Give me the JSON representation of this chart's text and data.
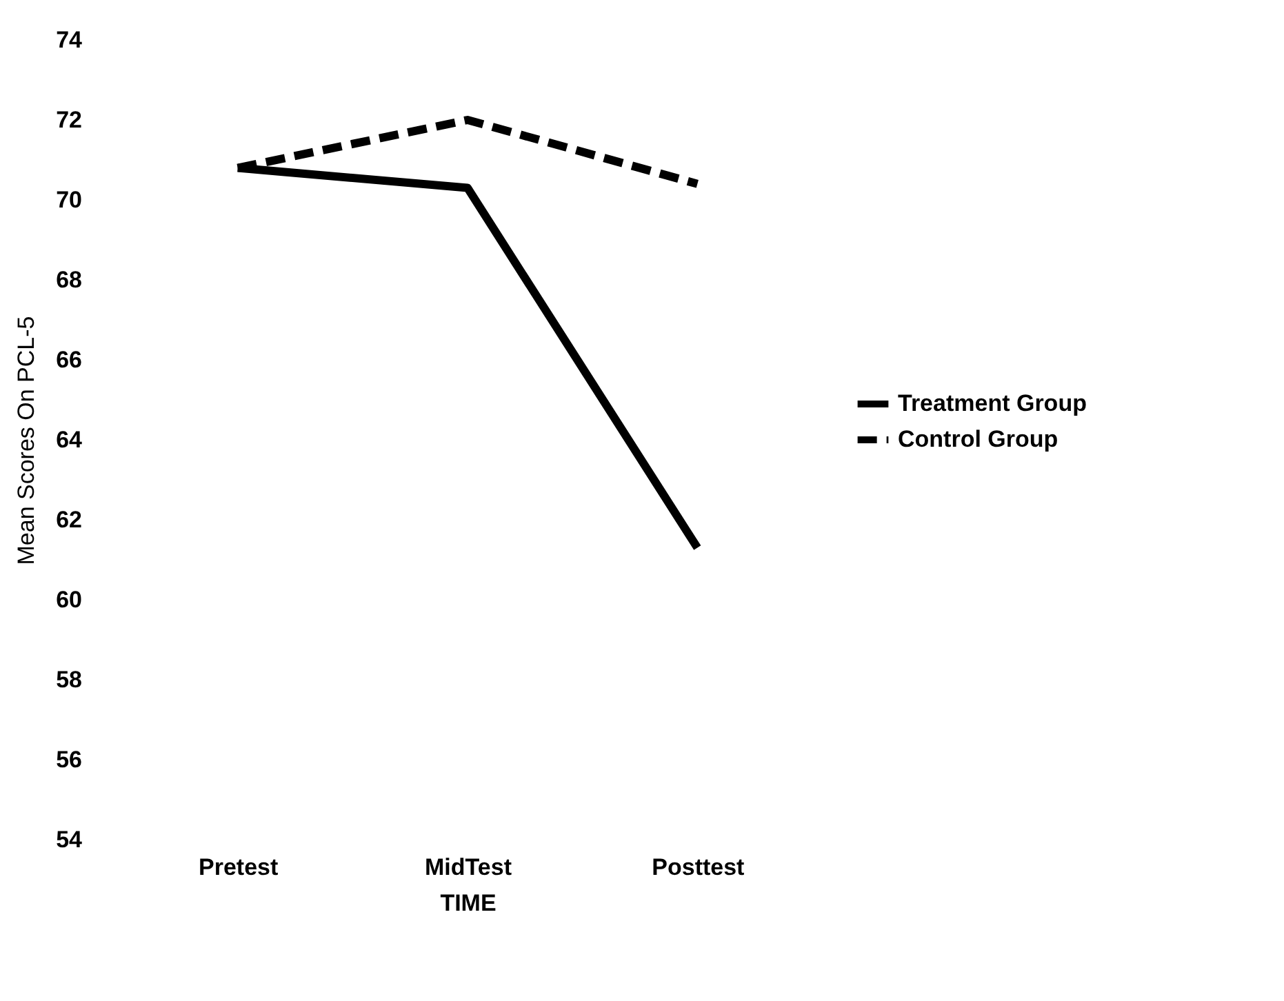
{
  "chart_data": {
    "type": "line",
    "xlabel": "TIME",
    "ylabel": "Mean Scores On PCL-5",
    "categories": [
      "Pretest",
      "MidTest",
      "Posttest"
    ],
    "series": [
      {
        "name": "Treatment Group",
        "color": "#000000",
        "line_style": "solid",
        "values": [
          70.8,
          70.3,
          61.3
        ]
      },
      {
        "name": "Control Group",
        "color": "#000000",
        "line_style": "dashed",
        "values": [
          70.8,
          72.0,
          70.4
        ]
      }
    ],
    "ylim": [
      54,
      74
    ],
    "yticks": [
      54,
      56,
      58,
      60,
      62,
      64,
      66,
      68,
      70,
      72,
      74
    ],
    "grid": false,
    "legend": "right",
    "marker": "none"
  }
}
